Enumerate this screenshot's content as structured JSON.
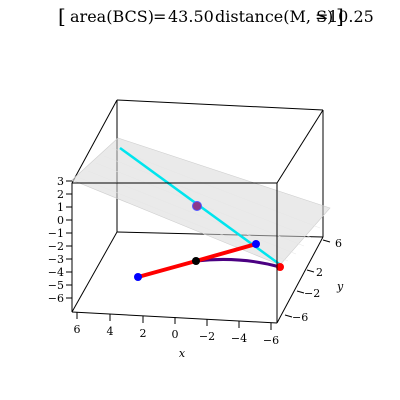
{
  "title": {
    "open_bracket": "[",
    "area_label": "area(BCS)",
    "area_value": "43.50",
    "distance_label": "distance(M, S)",
    "distance_value": "10.25",
    "close_bracket": "]",
    "equals": "="
  },
  "axes": {
    "x": {
      "label": "x",
      "ticks": [
        "6",
        "4",
        "2",
        "0",
        "−2",
        "−4",
        "−6"
      ]
    },
    "y": {
      "label": "y",
      "ticks": [
        "6",
        "2",
        "−2",
        "−6"
      ]
    },
    "z": {
      "ticks": [
        "3",
        "2",
        "1",
        "0",
        "−1",
        "−2",
        "−3",
        "−4",
        "−5",
        "−6"
      ]
    }
  },
  "colors": {
    "box": "#000000",
    "plane": "#d9d9d9",
    "line_cyan": "#00e5ee",
    "segment_red": "#ff0000",
    "segment_purple": "#4b0082",
    "point_blue": "#0000ff",
    "point_black": "#000000",
    "point_red": "#ff0000",
    "point_midplane": "#8b3a8b"
  }
}
